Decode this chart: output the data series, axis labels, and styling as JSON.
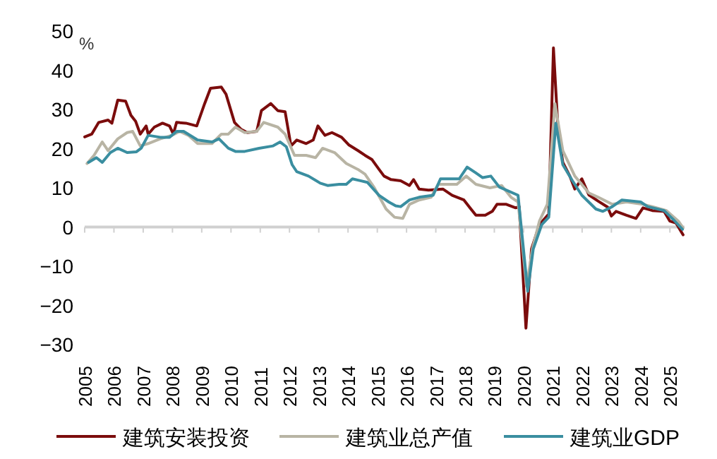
{
  "chart_data": {
    "type": "line",
    "ylabel": "%",
    "xlim": [
      2005,
      2025.5
    ],
    "ylim": [
      -30,
      50
    ],
    "xticks": [
      2005,
      2006,
      2007,
      2008,
      2009,
      2010,
      2011,
      2012,
      2013,
      2014,
      2015,
      2016,
      2017,
      2018,
      2019,
      2020,
      2021,
      2022,
      2023,
      2024,
      2025
    ],
    "yticks": [
      -30,
      -20,
      -10,
      0,
      10,
      20,
      30,
      40,
      50
    ],
    "legend": "bottom",
    "line_style": "solid",
    "marker": "none",
    "series": [
      {
        "name": "建筑安装投资",
        "color": "#7b0c0c",
        "x": [
          2005.0,
          2005.24,
          2005.48,
          2005.8,
          2005.93,
          2006.13,
          2006.4,
          2006.58,
          2006.74,
          2006.9,
          2007.1,
          2007.17,
          2007.38,
          2007.66,
          2007.9,
          2008.03,
          2008.14,
          2008.46,
          2008.83,
          2009.1,
          2009.3,
          2009.67,
          2009.83,
          2010.12,
          2010.35,
          2010.56,
          2010.88,
          2011.04,
          2011.36,
          2011.6,
          2011.85,
          2012.05,
          2012.25,
          2012.57,
          2012.81,
          2012.97,
          2013.21,
          2013.45,
          2013.78,
          2014.02,
          2014.34,
          2014.58,
          2014.82,
          2015.06,
          2015.23,
          2015.47,
          2015.8,
          2016.1,
          2016.24,
          2016.43,
          2016.75,
          2017.24,
          2017.56,
          2017.96,
          2018.2,
          2018.37,
          2018.69,
          2018.93,
          2019.09,
          2019.41,
          2019.73,
          2019.85,
          2020.08,
          2020.27,
          2020.54,
          2020.86,
          2021.02,
          2021.18,
          2021.34,
          2021.58,
          2021.75,
          2021.99,
          2022.23,
          2022.55,
          2022.87,
          2023.0,
          2023.16,
          2023.52,
          2023.84,
          2024.08,
          2024.4,
          2024.8,
          2025.0,
          2025.21,
          2025.45
        ],
        "values": [
          23.0,
          23.7,
          26.7,
          27.3,
          26.5,
          32.4,
          32.1,
          28.5,
          27.0,
          23.7,
          25.8,
          23.7,
          25.5,
          26.5,
          25.8,
          23.7,
          26.7,
          26.5,
          25.8,
          31.5,
          35.4,
          35.7,
          33.9,
          26.7,
          24.9,
          24.1,
          24.4,
          29.7,
          31.5,
          29.7,
          29.4,
          20.7,
          22.2,
          21.3,
          22.2,
          25.8,
          23.4,
          24.1,
          22.9,
          21.0,
          19.5,
          18.3,
          17.2,
          14.7,
          13.0,
          12.1,
          11.8,
          10.6,
          12.1,
          9.7,
          9.4,
          9.7,
          8.1,
          6.9,
          4.6,
          3.0,
          3.0,
          4.0,
          5.8,
          5.8,
          4.9,
          5.2,
          -25.8,
          -5.6,
          0.6,
          3.3,
          45.7,
          24.4,
          16.5,
          13.0,
          9.7,
          12.3,
          8.2,
          6.6,
          5.1,
          2.8,
          4.0,
          3.0,
          2.2,
          4.9,
          4.2,
          4.0,
          1.5,
          1.0,
          -2.0
        ]
      },
      {
        "name": "建筑业总产值",
        "color": "#b8b4a4",
        "x": [
          2005.08,
          2005.32,
          2005.6,
          2005.8,
          2006.13,
          2006.45,
          2006.64,
          2006.9,
          2007.17,
          2007.58,
          2007.98,
          2008.25,
          2008.54,
          2008.86,
          2009.35,
          2009.67,
          2009.91,
          2010.15,
          2010.47,
          2010.88,
          2011.12,
          2011.6,
          2011.85,
          2012.17,
          2012.57,
          2012.89,
          2013.13,
          2013.54,
          2013.94,
          2014.34,
          2014.58,
          2014.9,
          2015.3,
          2015.59,
          2015.87,
          2016.1,
          2016.43,
          2016.84,
          2017.08,
          2017.72,
          2018.04,
          2018.37,
          2018.85,
          2019.25,
          2019.57,
          2019.81,
          2020.1,
          2020.3,
          2020.54,
          2020.81,
          2021.07,
          2021.34,
          2021.75,
          2022.23,
          2022.55,
          2023.03,
          2023.52,
          2024.08,
          2024.4,
          2024.88,
          2025.29,
          2025.45
        ],
        "values": [
          16.2,
          18.3,
          21.7,
          19.5,
          22.5,
          24.1,
          24.4,
          20.7,
          21.3,
          22.5,
          23.4,
          24.4,
          23.4,
          21.3,
          21.3,
          23.7,
          23.7,
          25.5,
          24.1,
          24.4,
          26.7,
          25.5,
          23.7,
          18.3,
          18.3,
          17.7,
          20.1,
          19.0,
          16.2,
          14.7,
          13.5,
          10.0,
          4.6,
          2.5,
          2.2,
          5.8,
          6.9,
          7.6,
          10.9,
          10.9,
          13.0,
          10.9,
          10.0,
          10.6,
          7.6,
          6.4,
          -15.2,
          -5.6,
          1.5,
          5.8,
          31.5,
          19.5,
          13.0,
          8.7,
          7.6,
          5.8,
          6.4,
          5.8,
          5.2,
          4.2,
          1.5,
          -0.2
        ]
      },
      {
        "name": "建筑业GDP",
        "color": "#3a8ea0",
        "x": [
          2005.13,
          2005.4,
          2005.6,
          2005.88,
          2006.13,
          2006.45,
          2006.77,
          2006.93,
          2007.17,
          2007.58,
          2007.9,
          2008.14,
          2008.38,
          2008.86,
          2009.35,
          2009.59,
          2009.91,
          2010.15,
          2010.47,
          2010.96,
          2011.44,
          2011.68,
          2011.89,
          2012.09,
          2012.25,
          2012.65,
          2013.05,
          2013.3,
          2013.7,
          2013.94,
          2014.15,
          2014.66,
          2015.06,
          2015.39,
          2015.63,
          2015.8,
          2016.1,
          2016.43,
          2016.91,
          2017.16,
          2017.8,
          2018.07,
          2018.37,
          2018.6,
          2018.88,
          2019.17,
          2019.81,
          2020.14,
          2020.33,
          2020.62,
          2020.86,
          2021.1,
          2021.34,
          2021.67,
          2021.99,
          2022.47,
          2022.71,
          2023.03,
          2023.36,
          2024.0,
          2024.24,
          2024.8,
          2025.13,
          2025.43
        ],
        "values": [
          16.5,
          17.7,
          16.5,
          19.0,
          20.1,
          19.0,
          19.2,
          20.1,
          23.4,
          22.9,
          22.9,
          24.4,
          24.4,
          22.2,
          21.7,
          22.5,
          20.1,
          19.3,
          19.3,
          20.1,
          20.7,
          21.7,
          20.5,
          15.9,
          14.1,
          13.0,
          11.2,
          10.6,
          10.9,
          10.9,
          12.3,
          11.4,
          8.1,
          6.4,
          5.4,
          5.2,
          6.9,
          7.6,
          8.1,
          12.3,
          12.3,
          15.3,
          13.8,
          12.6,
          13.0,
          10.2,
          8.1,
          -16.4,
          -5.6,
          0.6,
          2.5,
          26.5,
          15.9,
          11.8,
          8.1,
          4.6,
          4.0,
          5.2,
          6.9,
          6.4,
          5.2,
          4.2,
          1.8,
          -0.6
        ]
      }
    ]
  }
}
